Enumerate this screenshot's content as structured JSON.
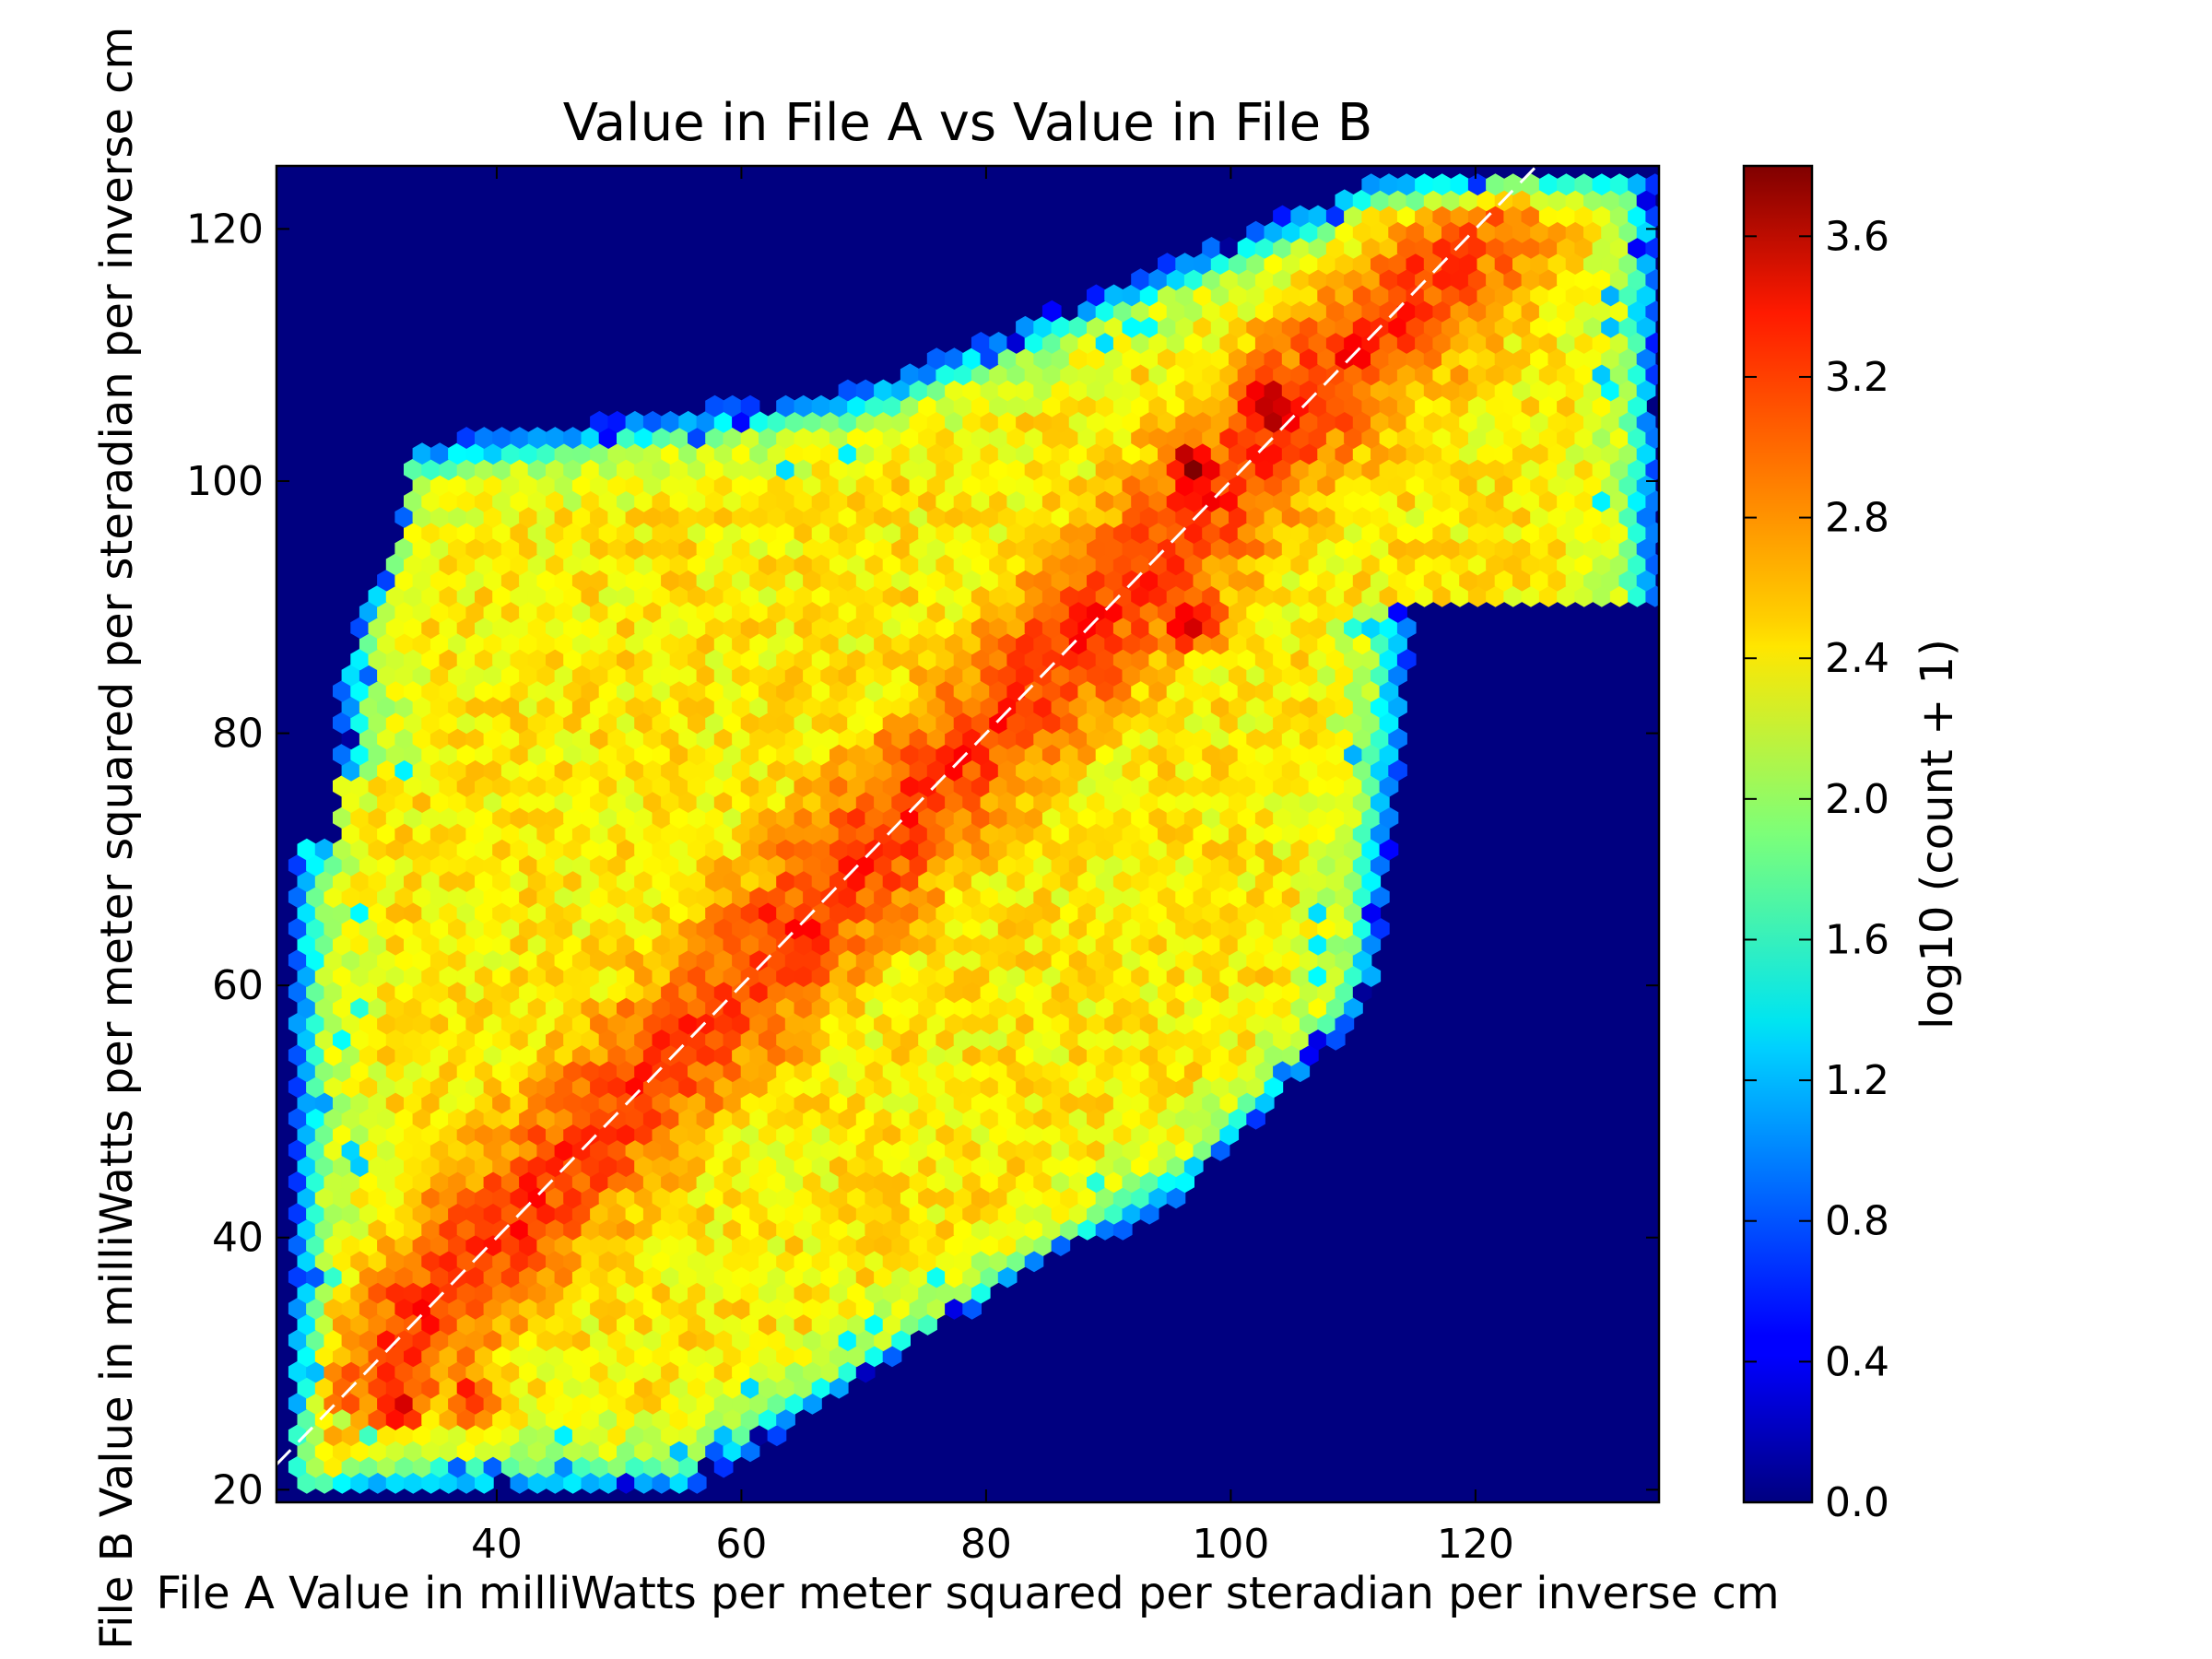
{
  "chart_data": {
    "type": "heatmap",
    "subtype": "hexbin",
    "title": "Value in File A vs Value in File B",
    "xlabel": "File A Value in milliWatts per meter squared per steradian per inverse cm",
    "ylabel": "File B Value in milliWatts per meter squared per steradian per inverse cm",
    "xlim": [
      22,
      135
    ],
    "ylim": [
      19,
      125
    ],
    "xticks": [
      40,
      60,
      80,
      100,
      120
    ],
    "yticks": [
      20,
      40,
      60,
      80,
      100,
      120
    ],
    "colorbar": {
      "label": "log10 (count + 1)",
      "range": [
        0.0,
        3.8
      ],
      "ticks": [
        "0.0",
        "0.4",
        "0.8",
        "1.2",
        "1.6",
        "2.0",
        "2.4",
        "2.8",
        "3.2",
        "3.6"
      ],
      "colormap": "jet"
    },
    "reference_line": {
      "type": "identity",
      "style": "dashed",
      "color": "#ffffff"
    },
    "background_color": "#000080",
    "density_hotspots": [
      {
        "x": 32,
        "y": 27,
        "log_count": 3.3
      },
      {
        "x": 38,
        "y": 27,
        "log_count": 3.2
      },
      {
        "x": 50,
        "y": 52,
        "log_count": 3.1
      },
      {
        "x": 55,
        "y": 57,
        "log_count": 3.0
      },
      {
        "x": 62,
        "y": 66,
        "log_count": 3.1
      },
      {
        "x": 86,
        "y": 91,
        "log_count": 3.0
      },
      {
        "x": 97,
        "y": 89,
        "log_count": 3.4
      },
      {
        "x": 97,
        "y": 101,
        "log_count": 3.6
      },
      {
        "x": 103,
        "y": 106,
        "log_count": 3.7
      }
    ]
  }
}
